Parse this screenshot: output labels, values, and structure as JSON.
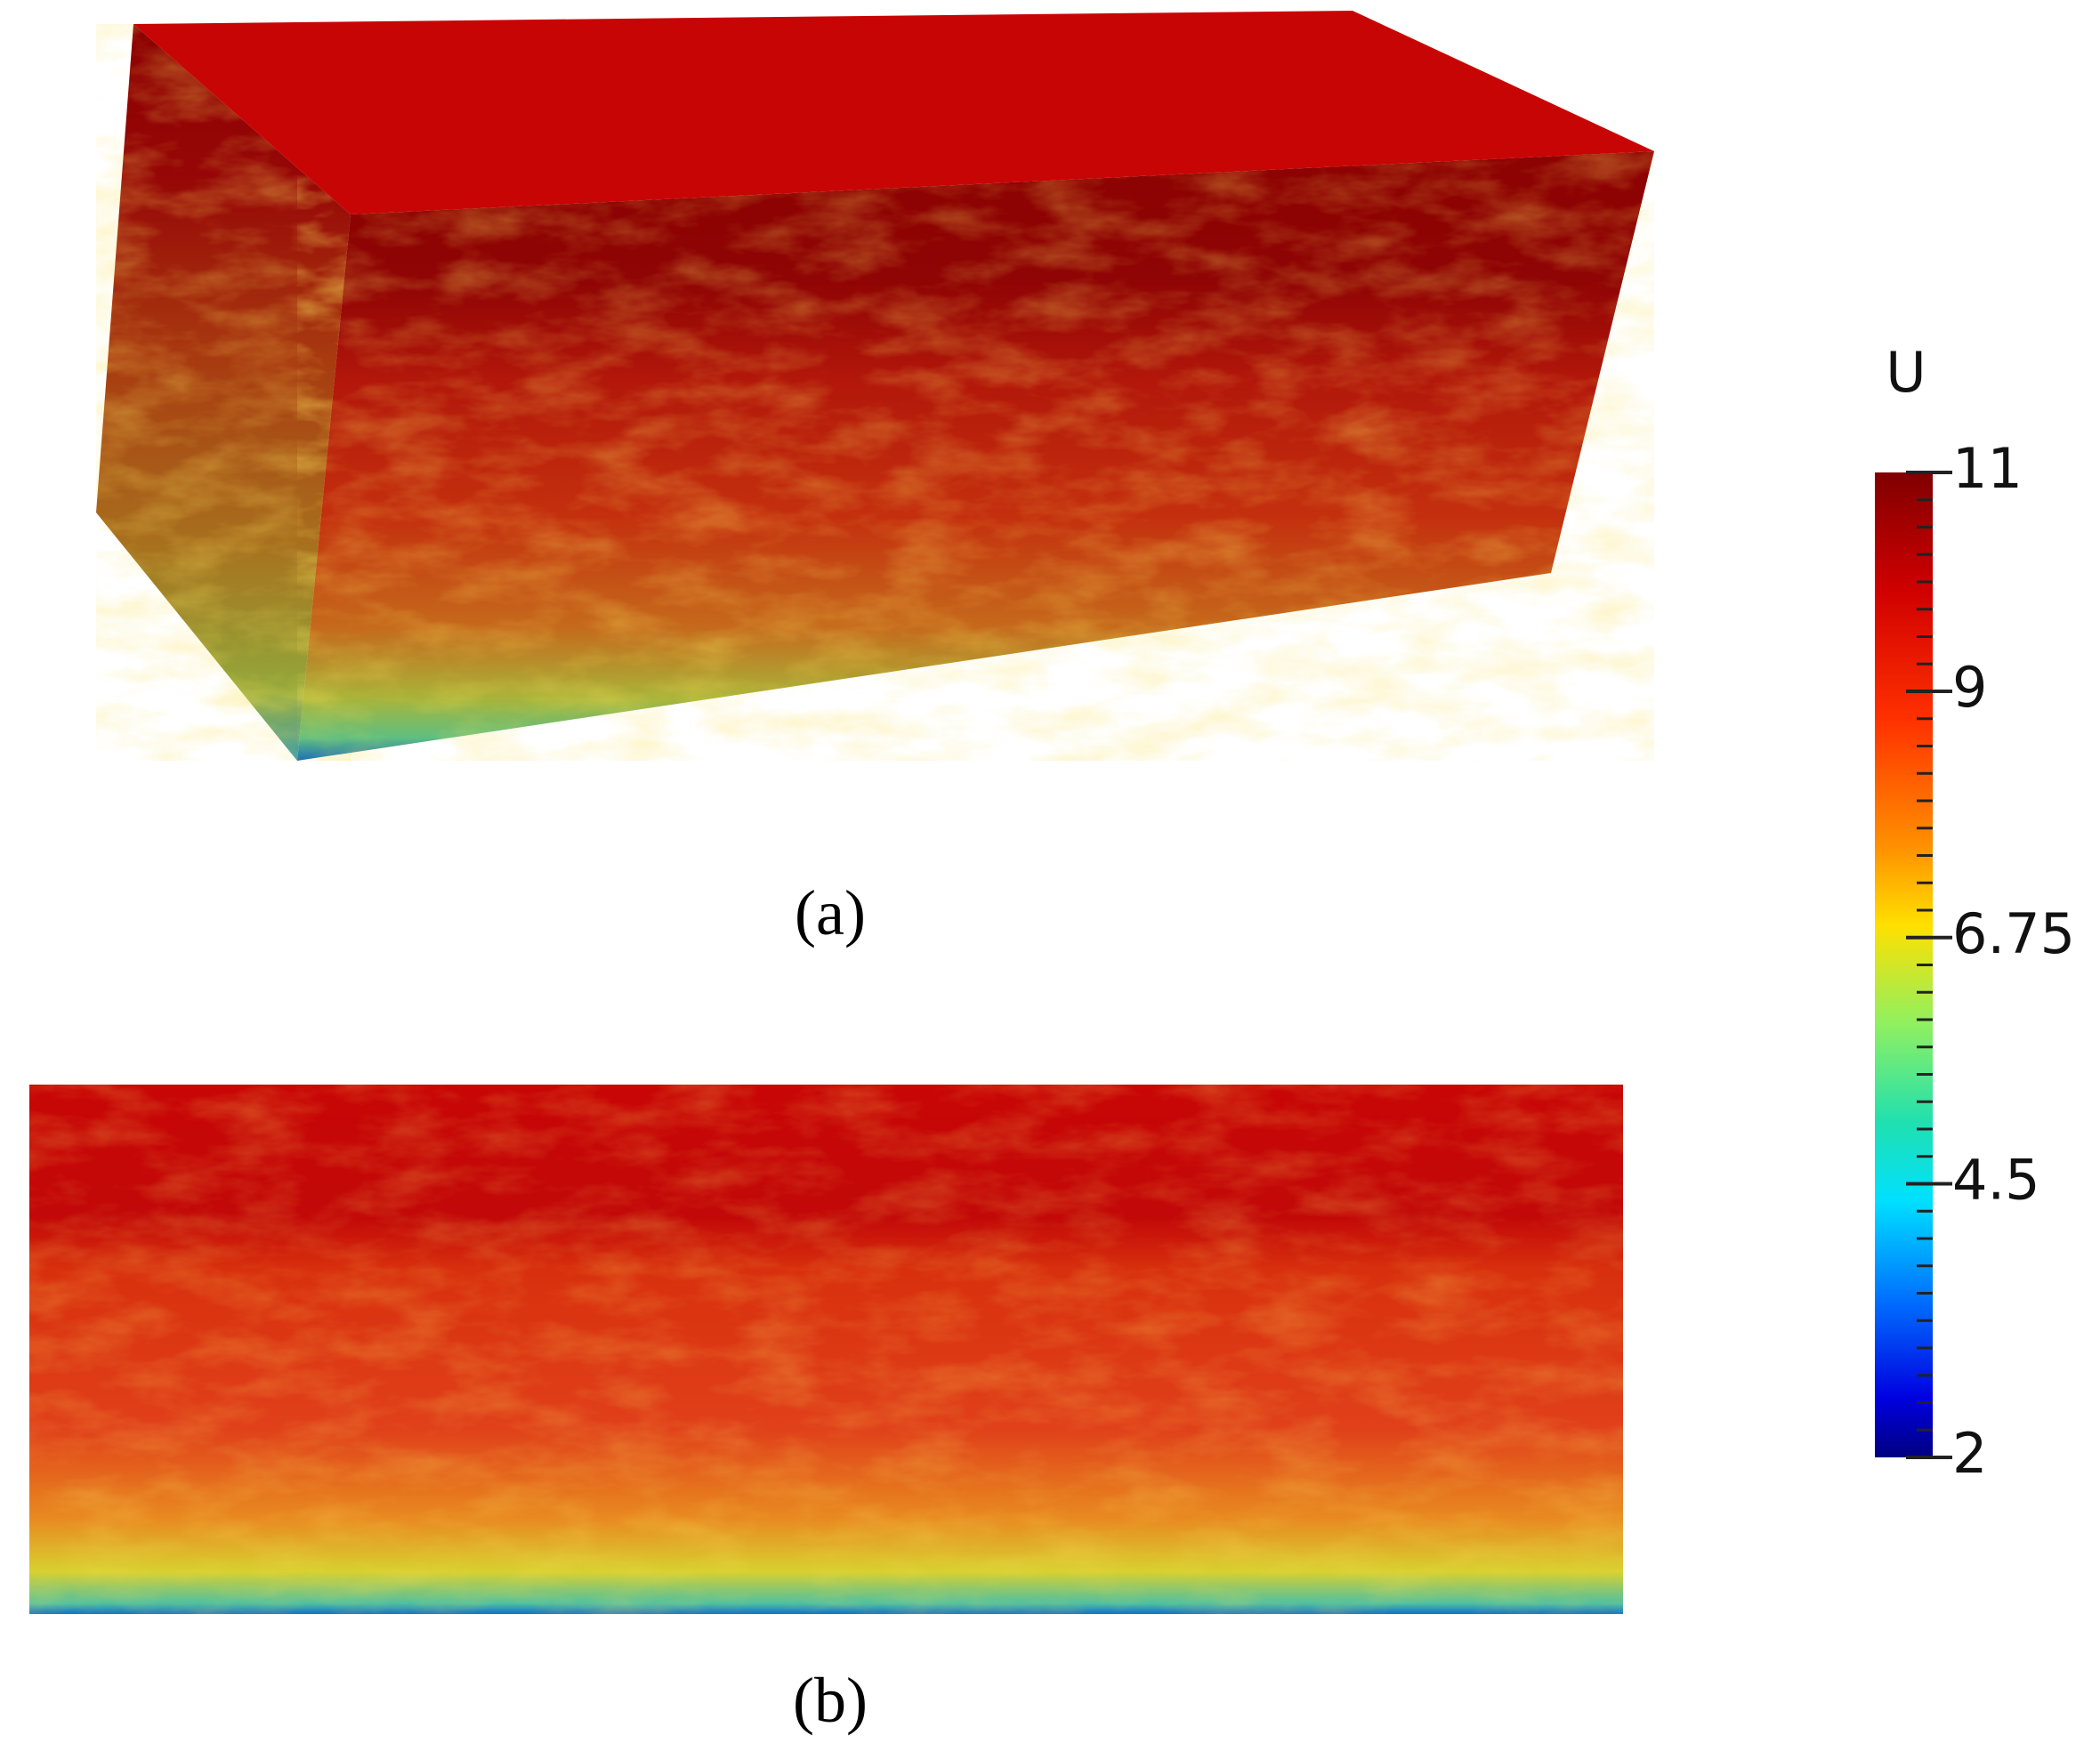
{
  "panels": [
    {
      "label": "(a)"
    },
    {
      "label": "(b)"
    }
  ],
  "colorbar": {
    "title": "U",
    "range": [
      2,
      11
    ],
    "ticks": [
      2,
      4.5,
      6.75,
      9,
      11
    ]
  }
}
